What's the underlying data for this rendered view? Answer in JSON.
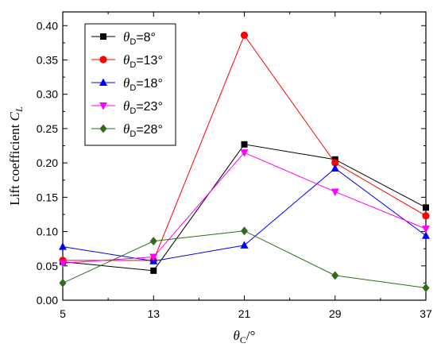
{
  "chart_data": {
    "type": "line",
    "x": [
      5,
      13,
      21,
      29,
      37
    ],
    "xlim": [
      5,
      37
    ],
    "ylim": [
      0,
      0.42
    ],
    "xticks": [
      "5",
      "13",
      "21",
      "29",
      "37"
    ],
    "yticks": [
      "0.00",
      "0.05",
      "0.10",
      "0.15",
      "0.20",
      "0.25",
      "0.30",
      "0.35",
      "0.40"
    ],
    "ytick_values": [
      0,
      0.05,
      0.1,
      0.15,
      0.2,
      0.25,
      0.3,
      0.35,
      0.4
    ],
    "ylabel": {
      "prefix": "Lift coefficient ",
      "symbol": "C",
      "sub": "L"
    },
    "xlabel": {
      "symbol": "θ",
      "sub": "C",
      "suffix": "/°"
    },
    "grid": false,
    "legend_position": "top-left",
    "series": [
      {
        "name_symbol": "θ",
        "name_sub": "D",
        "name_value": "=8°",
        "marker": "square",
        "color": "#000000",
        "values": [
          0.056,
          0.043,
          0.227,
          0.205,
          0.135
        ]
      },
      {
        "name_symbol": "θ",
        "name_sub": "D",
        "name_value": "=13°",
        "marker": "circle",
        "color": "#ff0000",
        "values": [
          0.058,
          0.058,
          0.386,
          0.2,
          0.123
        ]
      },
      {
        "name_symbol": "θ",
        "name_sub": "D",
        "name_value": "=18°",
        "marker": "triangle-up",
        "color": "#0000ff",
        "values": [
          0.078,
          0.057,
          0.08,
          0.192,
          0.094
        ]
      },
      {
        "name_symbol": "θ",
        "name_sub": "D",
        "name_value": "=23°",
        "marker": "triangle-down",
        "color": "#ff00ff",
        "values": [
          0.054,
          0.063,
          0.215,
          0.158,
          0.104
        ]
      },
      {
        "name_symbol": "θ",
        "name_sub": "D",
        "name_value": "=28°",
        "marker": "diamond",
        "color": "#2e6b1a",
        "values": [
          0.025,
          0.086,
          0.101,
          0.036,
          0.018
        ]
      }
    ]
  }
}
